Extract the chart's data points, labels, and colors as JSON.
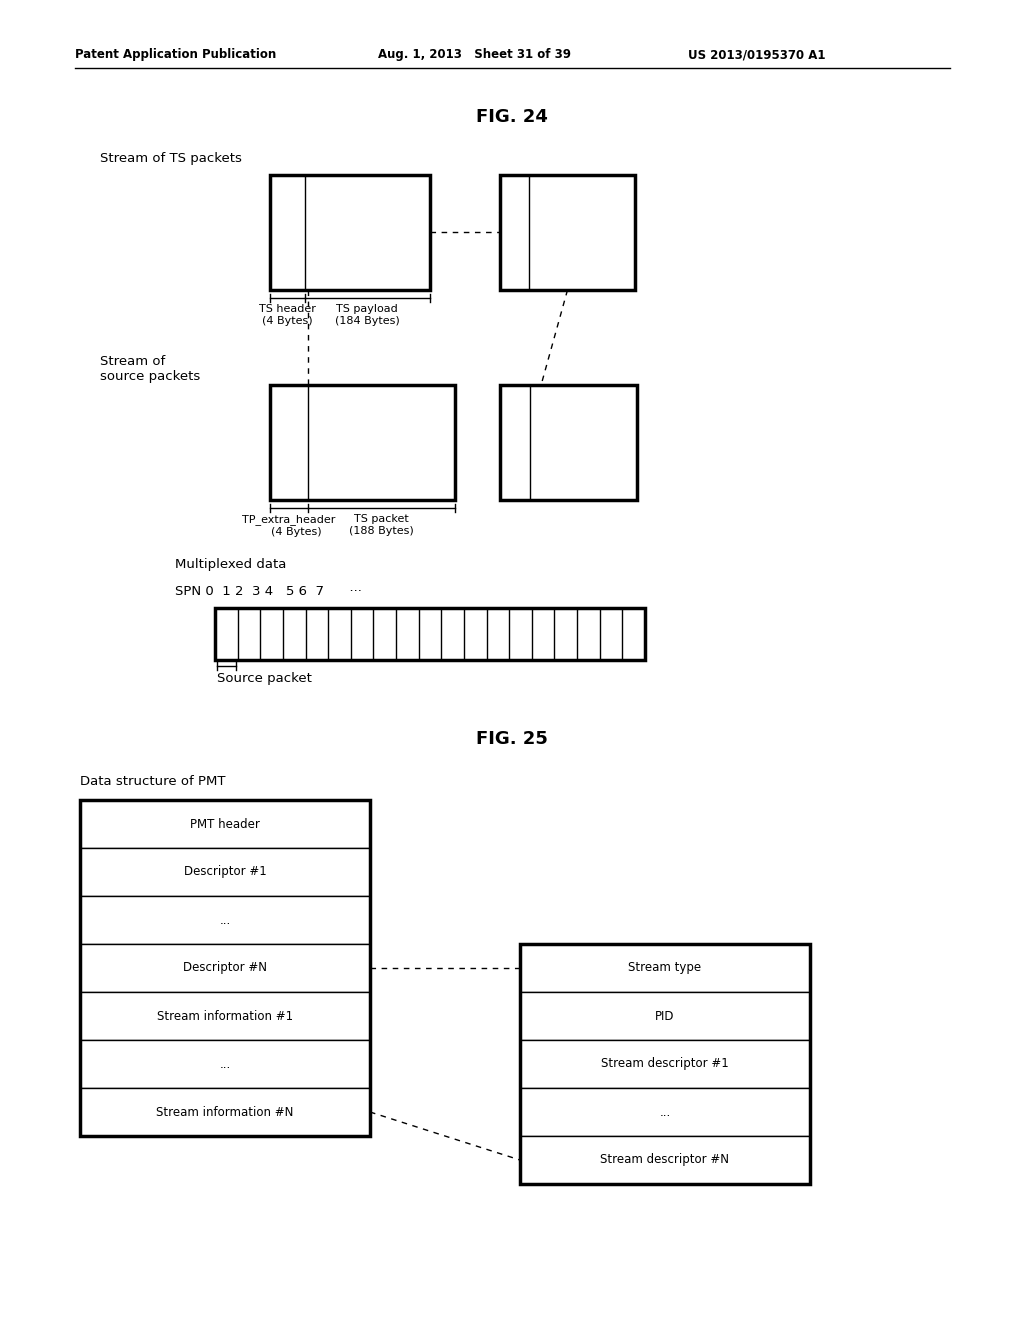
{
  "bg_color": "#ffffff",
  "line_color": "#000000",
  "thick_line": 2.5,
  "thin_line": 1.0,
  "header_left": "Patent Application Publication",
  "header_mid": "Aug. 1, 2013   Sheet 31 of 39",
  "header_right": "US 2013/0195370 A1",
  "fig24_title": "FIG. 24",
  "fig25_title": "FIG. 25",
  "label_stream_ts": "Stream of TS packets",
  "label_stream_src": "Stream of\nsource packets",
  "label_multiplexed": "Multiplexed data",
  "label_source_packet": "Source packet",
  "label_ts_header": "TS header\n(4 Bytes)",
  "label_ts_payload": "TS payload\n(184 Bytes)",
  "label_tp_extra": "TP_extra_header\n    (4 Bytes)",
  "label_ts_packet": "TS packet\n(188 Bytes)",
  "spn_label": "SPN 0  1 2  3 4   5 6  7      ···",
  "label_data_structure": "Data structure of PMT",
  "fig25_left_rows": [
    "PMT header",
    "Descriptor #1",
    "...",
    "Descriptor #N",
    "Stream information #1",
    "...",
    "Stream information #N"
  ],
  "fig25_right_rows": [
    "Stream type",
    "PID",
    "Stream descriptor #1",
    "...",
    "Stream descriptor #N"
  ]
}
